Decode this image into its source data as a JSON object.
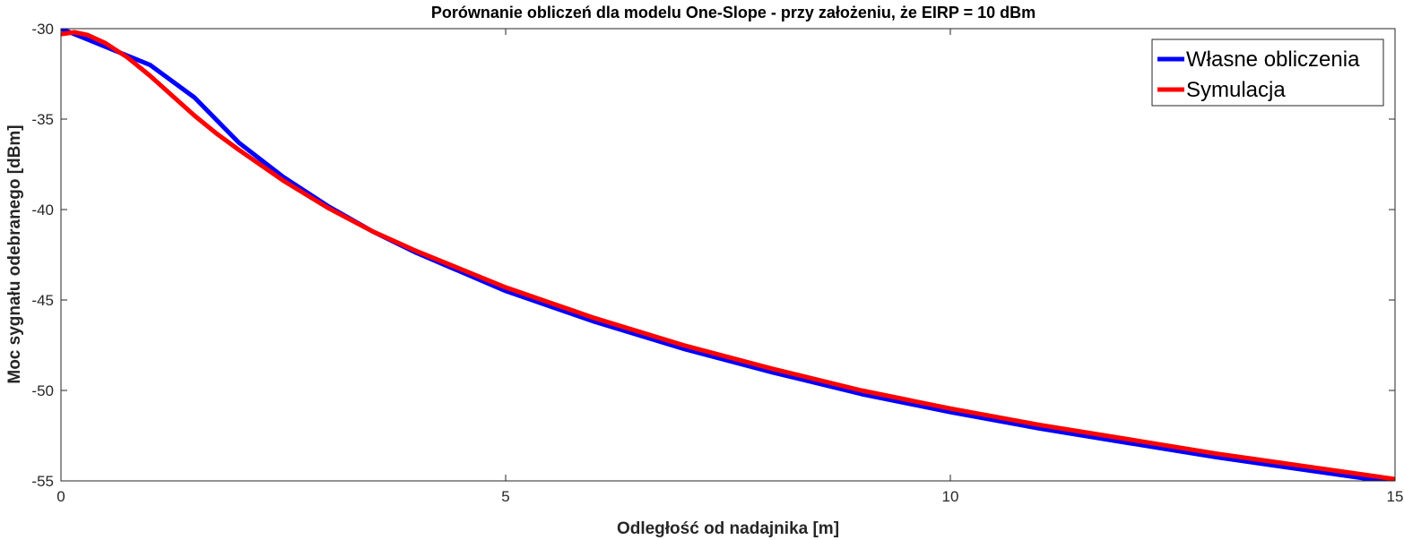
{
  "chart_data": {
    "type": "line",
    "title": "Porównanie obliczeń dla modelu One-Slope - przy założeniu, że EIRP = 10 dBm",
    "xlabel": "Odległość od nadajnika [m]",
    "ylabel": "Moc sygnału odebranego [dBm]",
    "xlim": [
      0,
      15
    ],
    "ylim": [
      -55,
      -30
    ],
    "xticks": [
      0,
      5,
      10,
      15
    ],
    "xtick_labels": [
      "0",
      "5",
      "10",
      "15"
    ],
    "yticks": [
      -30,
      -35,
      -40,
      -45,
      -50,
      -55
    ],
    "ytick_labels": [
      "-30",
      "-35",
      "-40",
      "-45",
      "-50",
      "-55"
    ],
    "grid": false,
    "legend_position": "top-right",
    "series": [
      {
        "name": "Własne obliczenia",
        "color": "#0000ff",
        "x": [
          0,
          0.25,
          0.5,
          0.75,
          1,
          1.5,
          2,
          2.5,
          3,
          3.5,
          4,
          5,
          6,
          7,
          8,
          9,
          10,
          11,
          12,
          13,
          14,
          15
        ],
        "y": [
          -30.0,
          -30.5,
          -31.0,
          -31.5,
          -32.0,
          -33.8,
          -36.3,
          -38.2,
          -39.8,
          -41.2,
          -42.4,
          -44.5,
          -46.2,
          -47.7,
          -49.0,
          -50.2,
          -51.2,
          -52.1,
          -52.9,
          -53.7,
          -54.4,
          -55.1
        ]
      },
      {
        "name": "Symulacja",
        "color": "#ff0000",
        "x": [
          0,
          0.15,
          0.3,
          0.5,
          0.75,
          1,
          1.25,
          1.5,
          1.75,
          2,
          2.5,
          3,
          3.5,
          4,
          5,
          6,
          7,
          8,
          9,
          10,
          11,
          12,
          13,
          14,
          15
        ],
        "y": [
          -30.3,
          -30.2,
          -30.35,
          -30.8,
          -31.6,
          -32.6,
          -33.7,
          -34.8,
          -35.8,
          -36.7,
          -38.4,
          -39.9,
          -41.2,
          -42.3,
          -44.3,
          -46.0,
          -47.5,
          -48.8,
          -50.0,
          -51.0,
          -51.9,
          -52.7,
          -53.5,
          -54.2,
          -54.9
        ]
      }
    ]
  }
}
